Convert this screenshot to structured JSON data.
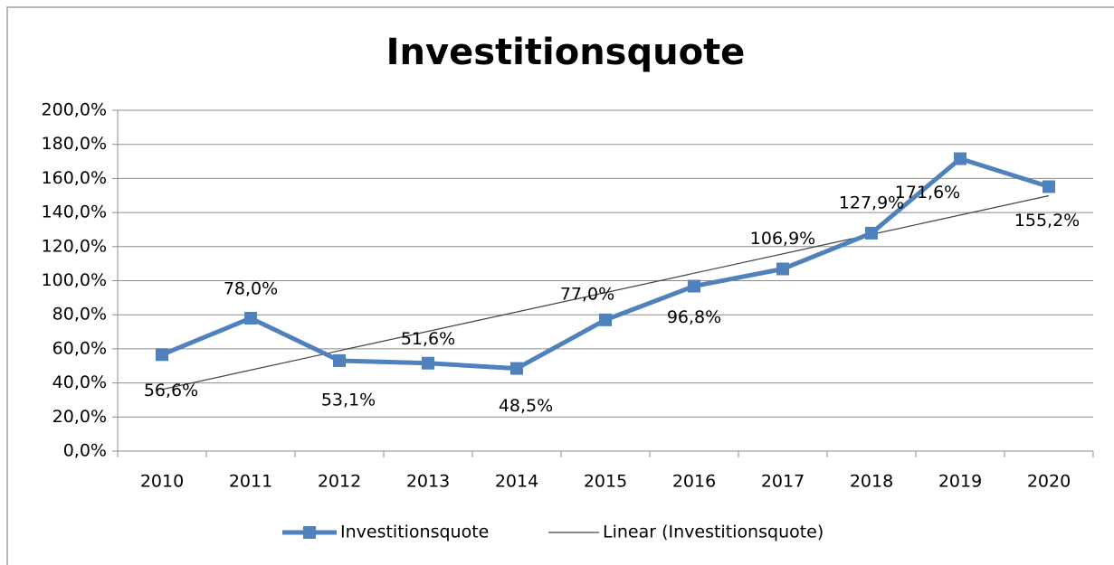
{
  "chart_data": {
    "type": "line",
    "title": "Investitionsquote",
    "categories": [
      "2010",
      "2011",
      "2012",
      "2013",
      "2014",
      "2015",
      "2016",
      "2017",
      "2018",
      "2019",
      "2020"
    ],
    "series": [
      {
        "name": "Investitionsquote",
        "color": "#4f81bd",
        "values": [
          56.6,
          78.0,
          53.1,
          51.6,
          48.5,
          77.0,
          96.8,
          106.9,
          127.9,
          171.6,
          155.2
        ],
        "value_labels": [
          "56,6%",
          "78,0%",
          "53,1%",
          "51,6%",
          "48,5%",
          "77,0%",
          "96,8%",
          "106,9%",
          "127,9%",
          "171,6%",
          "155,2%"
        ]
      }
    ],
    "trendline": {
      "name": "Linear (Investitionsquote)",
      "type": "linear",
      "color": "#404040"
    },
    "ylim": [
      0,
      200
    ],
    "yticks": [
      {
        "value": 0,
        "label": "0,0%"
      },
      {
        "value": 20,
        "label": "20,0%"
      },
      {
        "value": 40,
        "label": "40,0%"
      },
      {
        "value": 60,
        "label": "60,0%"
      },
      {
        "value": 80,
        "label": "80,0%"
      },
      {
        "value": 100,
        "label": "100,0%"
      },
      {
        "value": 120,
        "label": "120,0%"
      },
      {
        "value": 140,
        "label": "140,0%"
      },
      {
        "value": 160,
        "label": "160,0%"
      },
      {
        "value": 180,
        "label": "180,0%"
      },
      {
        "value": 200,
        "label": "200,0%"
      }
    ],
    "grid": true,
    "legend": "bottom"
  }
}
